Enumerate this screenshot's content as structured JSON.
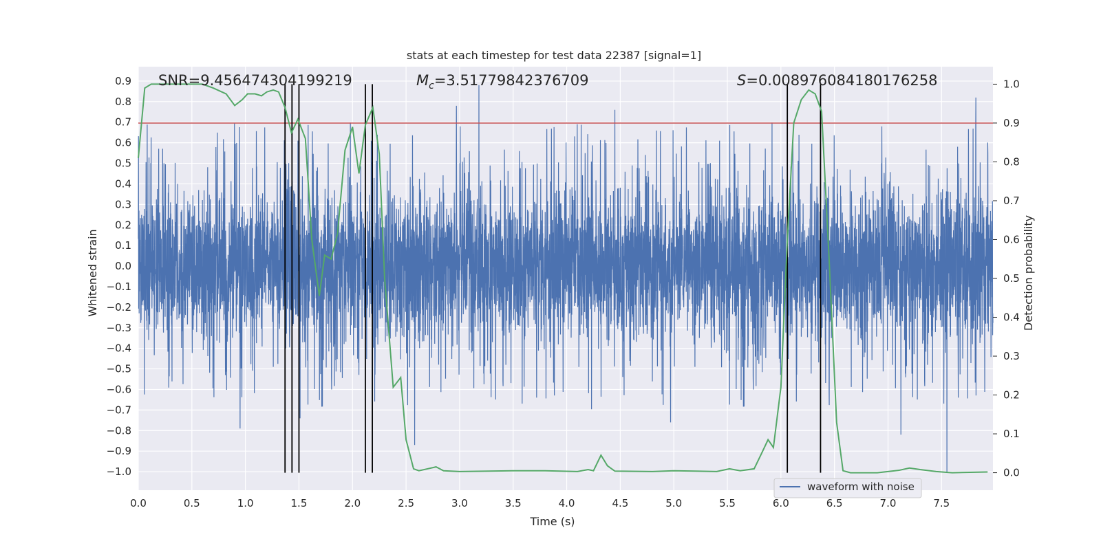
{
  "chart_data": {
    "type": "line",
    "title": "stats at each timestep for test data 22387 [signal=1]",
    "xlabel": "Time (s)",
    "ylabel_left": "Whitened strain",
    "ylabel_right": "Detection probability",
    "xlim": [
      0.0,
      7.98
    ],
    "ylim_left": [
      -1.09,
      0.97
    ],
    "ylim_right": [
      -0.045,
      1.045
    ],
    "x_ticks": [
      "0.0",
      "0.5",
      "1.0",
      "1.5",
      "2.0",
      "2.5",
      "3.0",
      "3.5",
      "4.0",
      "4.5",
      "5.0",
      "5.5",
      "6.0",
      "6.5",
      "7.0",
      "7.5"
    ],
    "y_ticks_left": [
      "0.9",
      "0.8",
      "0.7",
      "0.6",
      "0.5",
      "0.4",
      "0.3",
      "0.2",
      "0.1",
      "0.0",
      "-0.1",
      "-0.2",
      "-0.3",
      "-0.4",
      "-0.5",
      "-0.6",
      "-0.7",
      "-0.8",
      "-0.9",
      "-1.0"
    ],
    "y_ticks_right": [
      "1.0",
      "0.9",
      "0.8",
      "0.7",
      "0.6",
      "0.5",
      "0.4",
      "0.3",
      "0.2",
      "0.1",
      "0.0"
    ],
    "grid": true,
    "annotations": {
      "snr": "SNR=9.456474304199219",
      "mc_symbol": "M",
      "mc_sub": "c",
      "mc_value": "=3.51779842376709",
      "s_symbol": "S",
      "s_value": "=0.008976084180176258"
    },
    "threshold": {
      "axis": "right",
      "value": 0.9,
      "color": "#c44e52"
    },
    "vertical_markers_s": [
      1.37,
      1.435,
      1.5,
      2.12,
      2.185,
      6.06,
      6.37
    ],
    "strain": {
      "name": "waveform with noise",
      "color": "#4c72b0",
      "noise_amplitude": 0.4,
      "seed": 22387,
      "spikes": [
        {
          "t": 0.95,
          "v": -0.79
        },
        {
          "t": 1.37,
          "v": 0.71
        },
        {
          "t": 1.51,
          "v": -0.74
        },
        {
          "t": 2.58,
          "v": -0.87
        },
        {
          "t": 3.18,
          "v": 0.88
        },
        {
          "t": 4.45,
          "v": 0.76
        },
        {
          "t": 7.55,
          "v": -1.0
        },
        {
          "t": 7.82,
          "v": 0.82
        },
        {
          "t": 7.12,
          "v": -0.82
        },
        {
          "t": 2.97,
          "v": 0.78
        },
        {
          "t": 4.97,
          "v": -0.76
        }
      ]
    },
    "probability": {
      "name": "detection probability",
      "color": "#55a868",
      "points": [
        [
          0.0,
          0.81
        ],
        [
          0.06,
          0.99
        ],
        [
          0.12,
          1.0
        ],
        [
          0.6,
          1.0
        ],
        [
          0.7,
          0.99
        ],
        [
          0.82,
          0.975
        ],
        [
          0.9,
          0.945
        ],
        [
          0.97,
          0.96
        ],
        [
          1.02,
          0.975
        ],
        [
          1.09,
          0.975
        ],
        [
          1.15,
          0.97
        ],
        [
          1.2,
          0.98
        ],
        [
          1.26,
          0.985
        ],
        [
          1.31,
          0.98
        ],
        [
          1.37,
          0.94
        ],
        [
          1.43,
          0.875
        ],
        [
          1.49,
          0.91
        ],
        [
          1.56,
          0.86
        ],
        [
          1.62,
          0.6
        ],
        [
          1.69,
          0.455
        ],
        [
          1.74,
          0.56
        ],
        [
          1.8,
          0.55
        ],
        [
          1.86,
          0.615
        ],
        [
          1.93,
          0.83
        ],
        [
          2.0,
          0.89
        ],
        [
          2.06,
          0.77
        ],
        [
          2.12,
          0.895
        ],
        [
          2.19,
          0.94
        ],
        [
          2.25,
          0.82
        ],
        [
          2.3,
          0.5
        ],
        [
          2.38,
          0.22
        ],
        [
          2.45,
          0.245
        ],
        [
          2.5,
          0.085
        ],
        [
          2.57,
          0.01
        ],
        [
          2.62,
          0.005
        ],
        [
          2.7,
          0.01
        ],
        [
          2.78,
          0.015
        ],
        [
          2.85,
          0.005
        ],
        [
          3.0,
          0.003
        ],
        [
          3.5,
          0.005
        ],
        [
          3.8,
          0.005
        ],
        [
          4.1,
          0.003
        ],
        [
          4.2,
          0.008
        ],
        [
          4.25,
          0.005
        ],
        [
          4.32,
          0.045
        ],
        [
          4.38,
          0.018
        ],
        [
          4.45,
          0.004
        ],
        [
          4.8,
          0.003
        ],
        [
          5.0,
          0.005
        ],
        [
          5.4,
          0.003
        ],
        [
          5.52,
          0.01
        ],
        [
          5.62,
          0.005
        ],
        [
          5.75,
          0.01
        ],
        [
          5.82,
          0.05
        ],
        [
          5.88,
          0.085
        ],
        [
          5.93,
          0.065
        ],
        [
          6.0,
          0.22
        ],
        [
          6.06,
          0.6
        ],
        [
          6.12,
          0.9
        ],
        [
          6.19,
          0.96
        ],
        [
          6.26,
          0.985
        ],
        [
          6.32,
          0.975
        ],
        [
          6.38,
          0.93
        ],
        [
          6.45,
          0.55
        ],
        [
          6.52,
          0.13
        ],
        [
          6.58,
          0.005
        ],
        [
          6.65,
          0.0
        ],
        [
          6.9,
          0.0
        ],
        [
          7.1,
          0.006
        ],
        [
          7.2,
          0.012
        ],
        [
          7.3,
          0.008
        ],
        [
          7.45,
          0.003
        ],
        [
          7.6,
          0.0
        ],
        [
          7.93,
          0.002
        ]
      ]
    },
    "legend": {
      "placement": "bottom-right",
      "entries": [
        "waveform with noise"
      ]
    }
  }
}
